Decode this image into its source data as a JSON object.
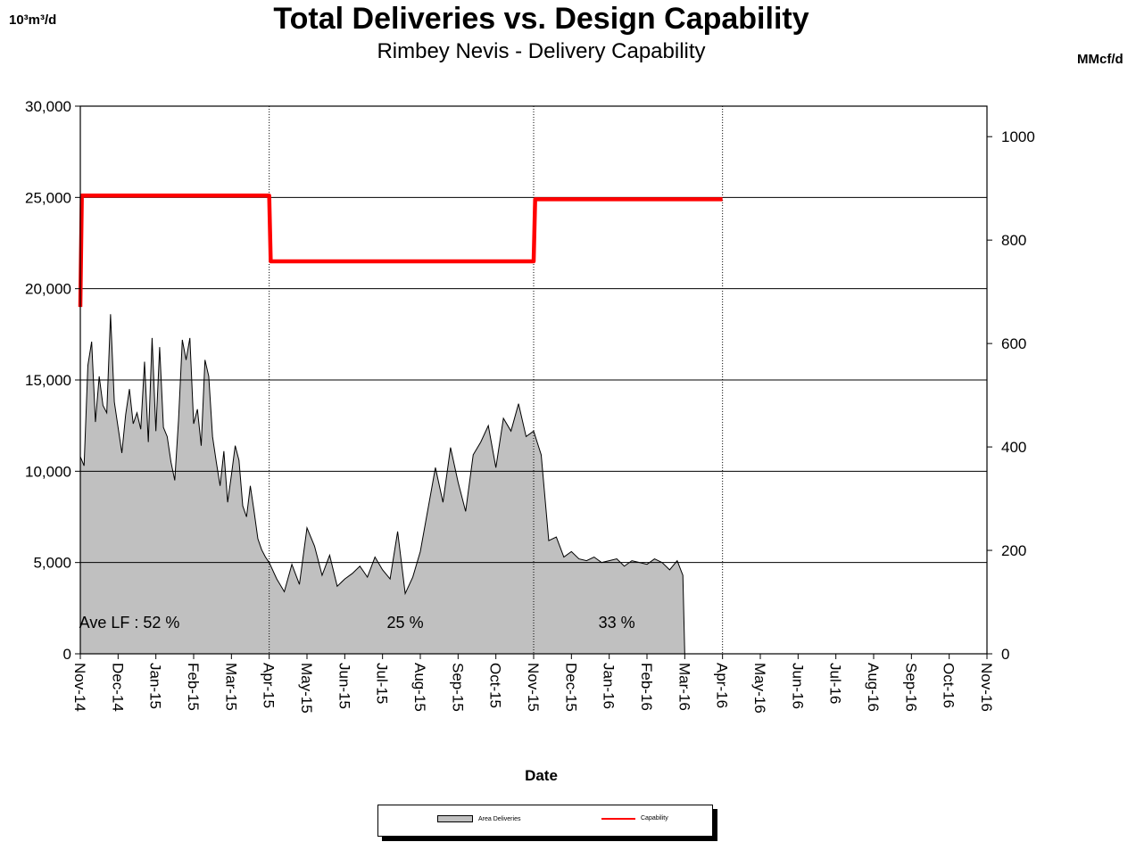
{
  "chart_data": {
    "type": "area",
    "title": "Total Deliveries vs. Design Capability",
    "subtitle": "Rimbey Nevis - Delivery Capability",
    "y_left_unit": "10³m³/d",
    "y_right_unit": "MMcf/d",
    "xlabel": "Date",
    "ylim": [
      0,
      30000
    ],
    "y_right_lim": [
      0,
      1059
    ],
    "y_ticks": [
      "0",
      "5,000",
      "10,000",
      "15,000",
      "20,000",
      "25,000",
      "30,000"
    ],
    "y_tick_values": [
      0,
      5000,
      10000,
      15000,
      20000,
      25000,
      30000
    ],
    "y_right_ticks": [
      "0",
      "200",
      "400",
      "600",
      "800",
      "1000"
    ],
    "y_right_tick_values": [
      0,
      200,
      400,
      600,
      800,
      1000
    ],
    "x_ticks": [
      "Nov-14",
      "Dec-14",
      "Jan-15",
      "Feb-15",
      "Mar-15",
      "Apr-15",
      "May-15",
      "Jun-15",
      "Jul-15",
      "Aug-15",
      "Sep-15",
      "Oct-15",
      "Nov-15",
      "Dec-15",
      "Jan-16",
      "Feb-16",
      "Mar-16",
      "Apr-16",
      "May-16",
      "Jun-16",
      "Jul-16",
      "Aug-16",
      "Sep-16",
      "Oct-16",
      "Nov-16"
    ],
    "grid": "horizontal lines at each left-axis tick; dotted vertical lines at Apr-15, Nov-15, Apr-16",
    "period_dividers": [
      "Apr-15",
      "Nov-15",
      "Apr-16"
    ],
    "legend_placement": "bottom-center",
    "annotations": [
      {
        "text": "Ave LF : 52 %",
        "x": "Dec-14"
      },
      {
        "text": "25 %",
        "x": "Jul-15"
      },
      {
        "text": "33 %",
        "x": "Dec-15"
      }
    ],
    "series": [
      {
        "name": "Area Deliveries",
        "kind": "area",
        "color": "#c0c0c0",
        "x_months_since_nov14": [
          0,
          0.1,
          0.2,
          0.3,
          0.4,
          0.5,
          0.6,
          0.7,
          0.8,
          0.9,
          1.0,
          1.1,
          1.2,
          1.3,
          1.4,
          1.5,
          1.6,
          1.7,
          1.8,
          1.9,
          2.0,
          2.1,
          2.2,
          2.3,
          2.4,
          2.5,
          2.6,
          2.7,
          2.8,
          2.9,
          3.0,
          3.1,
          3.2,
          3.3,
          3.4,
          3.5,
          3.6,
          3.7,
          3.8,
          3.9,
          4.0,
          4.1,
          4.2,
          4.3,
          4.4,
          4.5,
          4.6,
          4.7,
          4.8,
          4.9,
          5.0,
          5.2,
          5.4,
          5.6,
          5.8,
          6.0,
          6.2,
          6.4,
          6.6,
          6.8,
          7.0,
          7.2,
          7.4,
          7.6,
          7.8,
          8.0,
          8.2,
          8.4,
          8.6,
          8.8,
          9.0,
          9.2,
          9.4,
          9.6,
          9.8,
          10.0,
          10.2,
          10.4,
          10.6,
          10.8,
          11.0,
          11.2,
          11.4,
          11.6,
          11.8,
          12.0,
          12.2,
          12.4,
          12.6,
          12.8,
          13.0,
          13.2,
          13.4,
          13.6,
          13.8,
          14.0,
          14.2,
          14.4,
          14.6,
          14.8,
          15.0,
          15.2,
          15.4,
          15.6,
          15.8,
          15.95,
          16.0
        ],
        "values": [
          10800,
          10300,
          15800,
          17100,
          12700,
          15200,
          13600,
          13200,
          18600,
          13800,
          12400,
          11000,
          13100,
          14500,
          12600,
          13200,
          12300,
          16000,
          11600,
          17300,
          12200,
          16800,
          12400,
          11900,
          10500,
          9500,
          12800,
          17200,
          16100,
          17300,
          12600,
          13400,
          11400,
          16100,
          15200,
          11900,
          10500,
          9200,
          11100,
          8300,
          9800,
          11400,
          10600,
          8100,
          7500,
          9200,
          7800,
          6300,
          5700,
          5300,
          5000,
          4100,
          3400,
          4900,
          3800,
          6900,
          5900,
          4300,
          5400,
          3700,
          4100,
          4400,
          4800,
          4200,
          5300,
          4600,
          4100,
          6700,
          3300,
          4200,
          5600,
          7900,
          10200,
          8300,
          11300,
          9400,
          7800,
          10900,
          11600,
          12500,
          10200,
          12900,
          12200,
          13700,
          11900,
          12200,
          10900,
          6200,
          6400,
          5300,
          5600,
          5200,
          5100,
          5300,
          5000,
          5100,
          5200,
          4800,
          5100,
          5000,
          4900,
          5200,
          5000,
          4600,
          5100,
          4300,
          0
        ]
      },
      {
        "name": "Capability",
        "kind": "step-line",
        "color": "#ff0000",
        "segments": [
          {
            "from": "Nov-14",
            "to": "Apr-15",
            "value": 25100
          },
          {
            "from": "Apr-15",
            "to": "Nov-15",
            "value": 21500
          },
          {
            "from": "Nov-15",
            "to": "Apr-16",
            "value": 24900
          }
        ],
        "start_value": 19000
      }
    ]
  }
}
